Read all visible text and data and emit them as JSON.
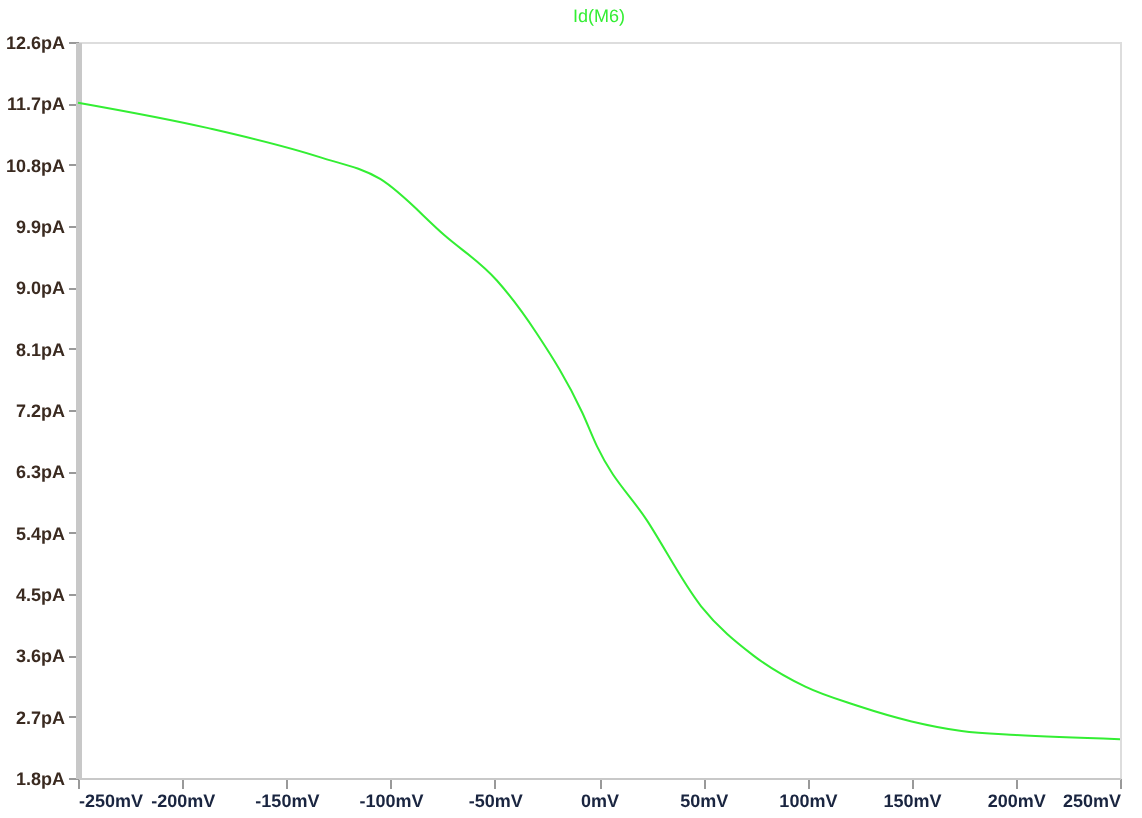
{
  "chart_data": {
    "type": "line",
    "title": "Id(M6)",
    "x": [
      -250,
      -188,
      -134,
      -105,
      -74,
      -49,
      -30,
      -8,
      -1,
      23,
      49,
      74,
      99,
      124,
      150,
      174,
      200,
      250
    ],
    "series": [
      {
        "color": "#33ee33",
        "values": [
          11.71,
          11.34,
          10.91,
          10.59,
          9.76,
          9.1,
          8.33,
          7.16,
          6.67,
          5.58,
          4.32,
          3.6,
          3.14,
          2.86,
          2.63,
          2.49,
          2.43,
          2.37
        ]
      }
    ],
    "xlim": [
      -250,
      250
    ],
    "ylim": [
      1.8,
      12.6
    ],
    "xticks": [
      {
        "value": -250,
        "label": "-250mV"
      },
      {
        "value": -200,
        "label": "-200mV"
      },
      {
        "value": -150,
        "label": "-150mV"
      },
      {
        "value": -100,
        "label": "-100mV"
      },
      {
        "value": -50,
        "label": "-50mV"
      },
      {
        "value": 0,
        "label": "0mV"
      },
      {
        "value": 50,
        "label": "50mV"
      },
      {
        "value": 100,
        "label": "100mV"
      },
      {
        "value": 150,
        "label": "150mV"
      },
      {
        "value": 200,
        "label": "200mV"
      },
      {
        "value": 250,
        "label": "250mV"
      }
    ],
    "yticks": [
      {
        "value": 1.8,
        "label": "1.8pA"
      },
      {
        "value": 2.7,
        "label": "2.7pA"
      },
      {
        "value": 3.6,
        "label": "3.6pA"
      },
      {
        "value": 4.5,
        "label": "4.5pA"
      },
      {
        "value": 5.4,
        "label": "5.4pA"
      },
      {
        "value": 6.3,
        "label": "6.3pA"
      },
      {
        "value": 7.2,
        "label": "7.2pA"
      },
      {
        "value": 8.1,
        "label": "8.1pA"
      },
      {
        "value": 9.0,
        "label": "9.0pA"
      },
      {
        "value": 9.9,
        "label": "9.9pA"
      },
      {
        "value": 10.8,
        "label": "10.8pA"
      },
      {
        "value": 11.7,
        "label": "11.7pA"
      },
      {
        "value": 12.6,
        "label": "12.6pA"
      }
    ],
    "grid": false,
    "legend": false,
    "marker": "none",
    "line_style": "solid"
  }
}
